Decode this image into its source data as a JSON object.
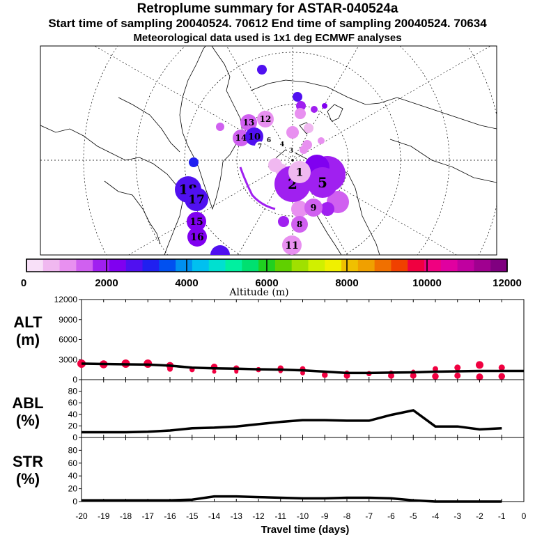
{
  "title": "Retroplume summary for ASTAR-040524a",
  "subtitle": "Start time of sampling 20040524. 70612     End time of sampling 20040524. 70634",
  "subtitle2": "Meteorological data used is 1x1 deg ECMWF analyses",
  "colorbar": {
    "label": "Altitude (m)",
    "tick_labels": [
      "0",
      "2000",
      "4000",
      "6000",
      "8000",
      "10000",
      "12000"
    ],
    "colors": [
      "#f8e0f8",
      "#f0b8f0",
      "#e890f0",
      "#d060f0",
      "#a020f0",
      "#8000f0",
      "#5010f0",
      "#2020f0",
      "#0050f0",
      "#0090f0",
      "#00c0f0",
      "#00e0d0",
      "#00f0a0",
      "#00e070",
      "#20d020",
      "#60d000",
      "#a0e000",
      "#d0f000",
      "#f0f000",
      "#f0c000",
      "#f0a000",
      "#f07000",
      "#f04000",
      "#f00040",
      "#f00080",
      "#e000a0",
      "#c000a0",
      "#a00090",
      "#800080"
    ]
  },
  "map_markers": [
    {
      "label": "18",
      "color": "#5010f0"
    },
    {
      "label": "17",
      "color": "#5010f0"
    },
    {
      "label": "16",
      "color": "#8000f0"
    },
    {
      "label": "15",
      "color": "#8000f0"
    },
    {
      "label": "14",
      "color": "#d060f0"
    },
    {
      "label": "13",
      "color": "#d060f0"
    },
    {
      "label": "12",
      "color": "#e890f0"
    },
    {
      "label": "11",
      "color": "#e890f0"
    },
    {
      "label": "10",
      "color": "#5010f0"
    },
    {
      "label": "9",
      "color": "#d060f0"
    },
    {
      "label": "8",
      "color": "#d060f0"
    },
    {
      "label": "7",
      "color": "#ffffff"
    },
    {
      "label": "6",
      "color": "#ffffff"
    },
    {
      "label": "5",
      "color": "#a020f0"
    },
    {
      "label": "4",
      "color": "#ffffff"
    },
    {
      "label": "3",
      "color": "#ffffff"
    },
    {
      "label": "2",
      "color": "#a020f0"
    },
    {
      "label": "1",
      "color": "#f0b8f0"
    }
  ],
  "chart_data": [
    {
      "type": "line",
      "panel": "ALT",
      "ylabel": "ALT\n(m)",
      "ylim": [
        0,
        12000
      ],
      "yticks": [
        0,
        3000,
        6000,
        9000,
        12000
      ],
      "x": [
        -20,
        -19,
        -18,
        -17,
        -16,
        -15,
        -14,
        -13,
        -12,
        -11,
        -10,
        -9,
        -8,
        -7,
        -6,
        -5,
        -4,
        -3,
        -2,
        -1,
        0
      ],
      "values": [
        2400,
        2350,
        2300,
        2250,
        2100,
        1800,
        1700,
        1650,
        1550,
        1500,
        1400,
        1200,
        1000,
        1000,
        1050,
        1100,
        1200,
        1250,
        1300,
        1300,
        1300
      ],
      "scatter_points": [
        {
          "x": -20,
          "y": 2400
        },
        {
          "x": -19,
          "y": 2300
        },
        {
          "x": -18,
          "y": 2400
        },
        {
          "x": -17,
          "y": 2400
        },
        {
          "x": -16,
          "y": 2100
        },
        {
          "x": -16,
          "y": 1600
        },
        {
          "x": -15,
          "y": 1500
        },
        {
          "x": -14,
          "y": 1900
        },
        {
          "x": -14,
          "y": 1200
        },
        {
          "x": -13,
          "y": 1700
        },
        {
          "x": -13,
          "y": 1200
        },
        {
          "x": -12,
          "y": 1500
        },
        {
          "x": -11,
          "y": 1700
        },
        {
          "x": -11,
          "y": 1300
        },
        {
          "x": -10,
          "y": 1600
        },
        {
          "x": -10,
          "y": 1000
        },
        {
          "x": -9,
          "y": 700
        },
        {
          "x": -8,
          "y": 1000
        },
        {
          "x": -8,
          "y": 600
        },
        {
          "x": -7,
          "y": 900
        },
        {
          "x": -6,
          "y": 1000
        },
        {
          "x": -6,
          "y": 600
        },
        {
          "x": -5,
          "y": 1200
        },
        {
          "x": -5,
          "y": 600
        },
        {
          "x": -4,
          "y": 1600
        },
        {
          "x": -4,
          "y": 500
        },
        {
          "x": -3,
          "y": 1800
        },
        {
          "x": -3,
          "y": 600
        },
        {
          "x": -2,
          "y": 2200
        },
        {
          "x": -2,
          "y": 400
        },
        {
          "x": -1,
          "y": 1800
        },
        {
          "x": -1,
          "y": 500
        }
      ]
    },
    {
      "type": "line",
      "panel": "ABL",
      "ylabel": "ABL\n(%)",
      "ylim": [
        0,
        100
      ],
      "yticks": [
        0,
        20,
        40,
        60,
        80
      ],
      "x": [
        -20,
        -19,
        -18,
        -17,
        -16,
        -15,
        -14,
        -13,
        -12,
        -11,
        -10,
        -9,
        -8,
        -7,
        -6,
        -5,
        -4,
        -3,
        -2,
        -1
      ],
      "values": [
        9,
        9,
        9,
        10,
        12,
        16,
        17,
        19,
        23,
        27,
        30,
        30,
        29,
        29,
        39,
        47,
        19,
        19,
        14,
        16
      ]
    },
    {
      "type": "line",
      "panel": "STR",
      "ylabel": "STR\n(%)",
      "ylim": [
        0,
        100
      ],
      "yticks": [
        0,
        20,
        40,
        60,
        80
      ],
      "x": [
        -20,
        -19,
        -18,
        -17,
        -16,
        -15,
        -14,
        -13,
        -12,
        -11,
        -10,
        -9,
        -8,
        -7,
        -6,
        -5,
        -4,
        -3,
        -2,
        -1
      ],
      "values": [
        2,
        2,
        2,
        2,
        2,
        3,
        8,
        8,
        7,
        6,
        5,
        5,
        6,
        6,
        5,
        2,
        0,
        0,
        0,
        0
      ]
    }
  ],
  "x_tick_labels": [
    "-20",
    "-19",
    "-18",
    "-17",
    "-16",
    "-15",
    "-14",
    "-13",
    "-12",
    "-11",
    "-10",
    "-9",
    "-8",
    "-7",
    "-6",
    "-5",
    "-4",
    "-3",
    "-2",
    "-1",
    "0"
  ],
  "xlabel": "Travel time (days)",
  "panel_labels": {
    "alt": "ALT",
    "alt_unit": "(m)",
    "abl": "ABL",
    "abl_unit": "(%)",
    "str": "STR",
    "str_unit": "(%)"
  },
  "colors": {
    "line": "#000000",
    "alt_dots": "#f00040"
  }
}
